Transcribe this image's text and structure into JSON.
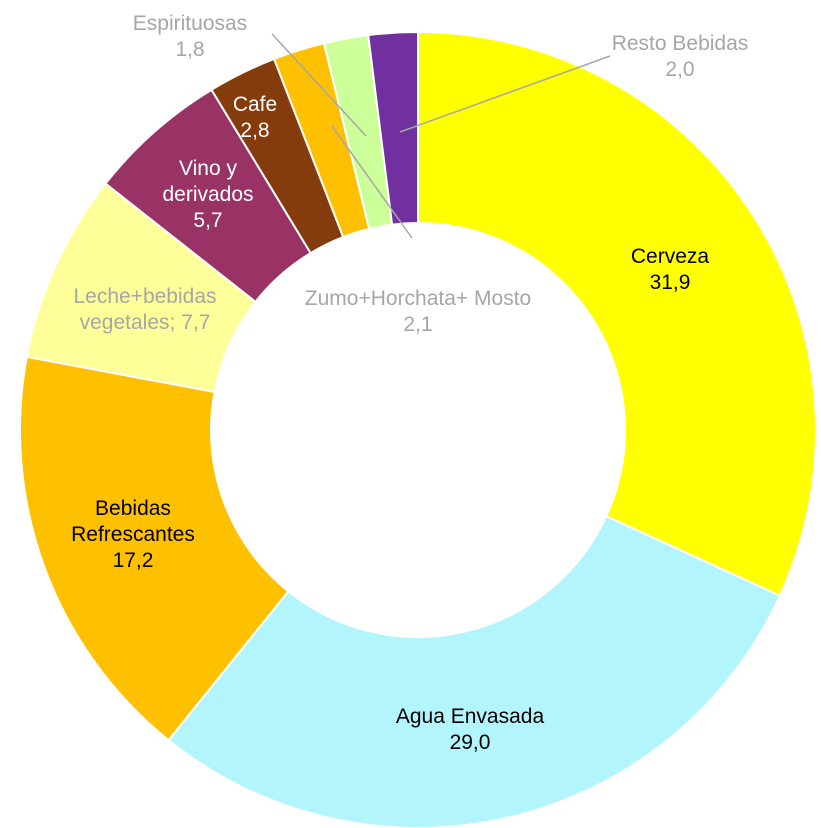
{
  "chart_data": {
    "type": "donut",
    "categories": [
      "Cerveza",
      "Agua Envasada",
      "Bebidas Refrescantes",
      "Leche+bebidas vegetales;",
      "Vino y derivados",
      "Cafe",
      "Zumo+Horchata+ Mosto",
      "Espirituosas",
      "Resto Bebidas"
    ],
    "values": [
      31.9,
      29.0,
      17.2,
      7.7,
      5.7,
      2.8,
      2.1,
      1.8,
      2.0
    ],
    "value_labels": [
      "31,9",
      "29,0",
      "17,2",
      "7,7",
      "5,7",
      "2,8",
      "2,1",
      "1,8",
      "2,0"
    ],
    "colors": [
      "#ffff00",
      "#b3f5fc",
      "#ffc000",
      "#ffff99",
      "#993366",
      "#843c0c",
      "#ffc000",
      "#ccff99",
      "#7030a0"
    ]
  }
}
